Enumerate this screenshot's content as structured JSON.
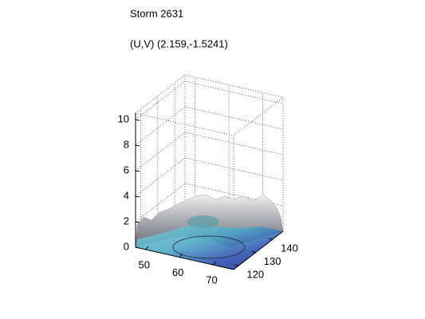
{
  "chart_data": {
    "type": "surface",
    "title": "Storm 2631",
    "subtitle": "(U,V) (2.159,-1.5241)",
    "xlim": [
      47,
      76
    ],
    "ylim": [
      117,
      146
    ],
    "zlim": [
      0,
      10.5
    ],
    "xticks": [
      50,
      60,
      70
    ],
    "yticks": [
      120,
      130,
      140
    ],
    "zticks": [
      0,
      2,
      4,
      6,
      8,
      10
    ],
    "grid": true
  }
}
